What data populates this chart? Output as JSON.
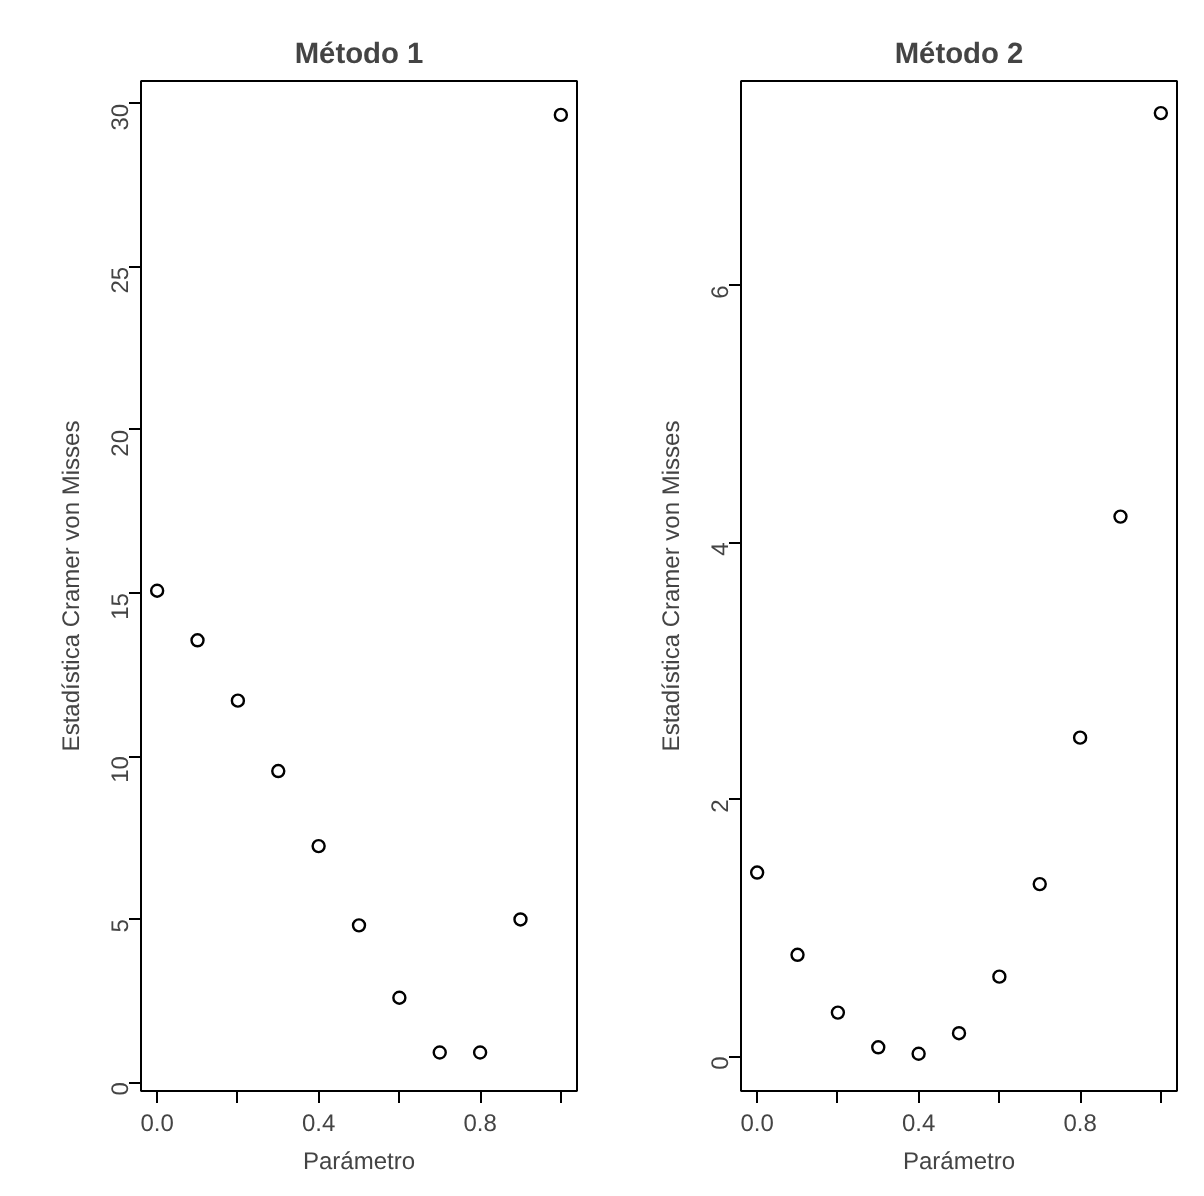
{
  "chart_data": [
    {
      "type": "scatter",
      "title": "Método 1",
      "xlabel": "Parámetro",
      "ylabel": "Estadística Cramer von Misses",
      "x": [
        0,
        0.1,
        0.2,
        0.3,
        0.4,
        0.5,
        0.6,
        0.7,
        0.8,
        0.9,
        1.0
      ],
      "series": [
        {
          "color": "#000000",
          "values": [
            15.07,
            13.55,
            11.7,
            9.54,
            7.24,
            4.81,
            2.59,
            0.91,
            0.91,
            4.99,
            29.66
          ]
        }
      ],
      "xlim": [
        -0.04,
        1.04
      ],
      "ylim": [
        -0.27,
        30.7
      ],
      "xticks": [
        {
          "value": 0,
          "label": "0.0"
        },
        {
          "value": 0.2,
          "label": null
        },
        {
          "value": 0.4,
          "label": "0.4"
        },
        {
          "value": 0.6,
          "label": null
        },
        {
          "value": 0.8,
          "label": "0.8"
        },
        {
          "value": 1.0,
          "label": null
        }
      ],
      "yticks": [
        0,
        5,
        10,
        15,
        20,
        25,
        30
      ],
      "grid": false,
      "marker": "circle"
    },
    {
      "type": "scatter",
      "title": "Método 2",
      "xlabel": "Parámetro",
      "ylabel": "Estadística Cramer von Misses",
      "x": [
        0,
        0.1,
        0.2,
        0.3,
        0.4,
        0.5,
        0.6,
        0.7,
        0.8,
        0.9,
        1.0
      ],
      "series": [
        {
          "color": "#000000",
          "values": [
            1.43,
            0.79,
            0.34,
            0.07,
            0.02,
            0.18,
            0.62,
            1.34,
            2.48,
            4.2,
            7.34
          ]
        }
      ],
      "xlim": [
        -0.04,
        1.04
      ],
      "ylim": [
        -0.27,
        7.59
      ],
      "xticks": [
        {
          "value": 0,
          "label": "0.0"
        },
        {
          "value": 0.2,
          "label": null
        },
        {
          "value": 0.4,
          "label": "0.4"
        },
        {
          "value": 0.6,
          "label": null
        },
        {
          "value": 0.8,
          "label": "0.8"
        },
        {
          "value": 1.0,
          "label": null
        }
      ],
      "yticks": [
        0,
        2,
        4,
        6
      ],
      "grid": false,
      "marker": "circle"
    }
  ]
}
